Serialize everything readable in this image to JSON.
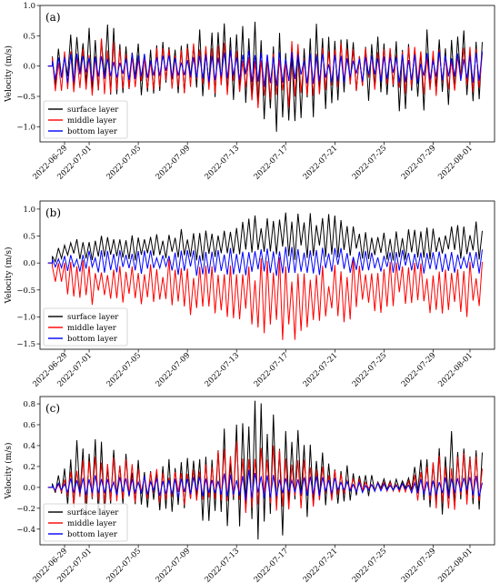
{
  "chart_data": [
    {
      "type": "line",
      "panel_label": "(a)",
      "ylabel": "Velocity (m/s)",
      "ylim": [
        -1.25,
        1.0
      ],
      "yticks": [
        -1.0,
        -0.5,
        0.0,
        0.5,
        1.0
      ],
      "ytick_labels": [
        "−1.0",
        "−0.5",
        "0.0",
        "0.5",
        "1.0"
      ],
      "xlim": [
        "2022-06-27",
        "2022-08-03"
      ],
      "xticks": [
        "2022-06-29",
        "2022-07-01",
        "2022-07-05",
        "2022-07-09",
        "2022-07-13",
        "2022-07-17",
        "2022-07-21",
        "2022-07-25",
        "2022-07-29",
        "2022-08-01"
      ],
      "legend_position": "lower-left",
      "grid": false,
      "series": [
        {
          "name": "surface layer",
          "color": "#000000",
          "start": "2022-06-28",
          "end": "2022-08-02",
          "min": -1.18,
          "max": 0.95,
          "envelope": [
            [
              0.22,
              -0.3
            ],
            [
              0.7,
              -0.45
            ],
            [
              0.75,
              -0.6
            ],
            [
              0.55,
              -0.55
            ],
            [
              0.5,
              -0.5
            ],
            [
              0.55,
              -0.5
            ],
            [
              0.62,
              -0.5
            ],
            [
              0.7,
              -0.6
            ],
            [
              0.7,
              -0.9
            ],
            [
              0.62,
              -1.15
            ],
            [
              0.66,
              -0.95
            ],
            [
              0.58,
              -0.75
            ],
            [
              0.52,
              -0.55
            ],
            [
              0.52,
              -0.6
            ],
            [
              0.58,
              -0.8
            ],
            [
              0.62,
              -0.75
            ],
            [
              0.55,
              -0.5
            ],
            [
              0.6,
              -0.7
            ]
          ]
        },
        {
          "name": "middle layer",
          "color": "#ff0000",
          "start": "2022-06-28",
          "end": "2022-08-02",
          "min": -0.8,
          "max": 0.55,
          "envelope": [
            [
              0.2,
              -0.6
            ],
            [
              0.4,
              -0.6
            ],
            [
              0.45,
              -0.55
            ],
            [
              0.35,
              -0.45
            ],
            [
              0.3,
              -0.4
            ],
            [
              0.35,
              -0.5
            ],
            [
              0.35,
              -0.45
            ],
            [
              0.4,
              -0.55
            ],
            [
              0.45,
              -0.75
            ],
            [
              0.4,
              -0.75
            ],
            [
              0.4,
              -0.7
            ],
            [
              0.35,
              -0.6
            ],
            [
              0.3,
              -0.45
            ],
            [
              0.3,
              -0.45
            ],
            [
              0.35,
              -0.6
            ],
            [
              0.4,
              -0.6
            ],
            [
              0.35,
              -0.45
            ],
            [
              0.45,
              -0.55
            ]
          ]
        },
        {
          "name": "bottom layer",
          "color": "#0000ff",
          "start": "2022-06-28",
          "end": "2022-08-02",
          "min": -0.45,
          "max": 0.3,
          "envelope": [
            [
              0.15,
              -0.3
            ],
            [
              0.25,
              -0.3
            ],
            [
              0.25,
              -0.3
            ],
            [
              0.2,
              -0.25
            ],
            [
              0.2,
              -0.2
            ],
            [
              0.2,
              -0.25
            ],
            [
              0.2,
              -0.25
            ],
            [
              0.25,
              -0.3
            ],
            [
              0.3,
              -0.4
            ],
            [
              0.25,
              -0.35
            ],
            [
              0.25,
              -0.3
            ],
            [
              0.2,
              -0.3
            ],
            [
              0.2,
              -0.25
            ],
            [
              0.2,
              -0.25
            ],
            [
              0.2,
              -0.3
            ],
            [
              0.25,
              -0.3
            ],
            [
              0.2,
              -0.25
            ],
            [
              0.25,
              -0.3
            ]
          ]
        }
      ]
    },
    {
      "type": "line",
      "panel_label": "(b)",
      "ylabel": "Velocity (m/s)",
      "ylim": [
        -1.6,
        1.15
      ],
      "yticks": [
        -1.5,
        -1.0,
        -0.5,
        0.0,
        0.5,
        1.0
      ],
      "ytick_labels": [
        "−1.5",
        "−1.0",
        "−0.5",
        "0.0",
        "0.5",
        "1.0"
      ],
      "xlim": [
        "2022-06-27",
        "2022-08-03"
      ],
      "xticks": [
        "2022-06-29",
        "2022-07-01",
        "2022-07-05",
        "2022-07-09",
        "2022-07-13",
        "2022-07-17",
        "2022-07-21",
        "2022-07-25",
        "2022-07-29",
        "2022-08-01"
      ],
      "legend_position": "lower-left",
      "grid": false,
      "series": [
        {
          "name": "surface layer",
          "color": "#000000",
          "start": "2022-06-28",
          "end": "2022-08-02",
          "min": -0.1,
          "max": 1.08,
          "envelope": [
            [
              0.2,
              0.0
            ],
            [
              0.5,
              0.05
            ],
            [
              0.55,
              0.05
            ],
            [
              0.55,
              0.05
            ],
            [
              0.55,
              0.05
            ],
            [
              0.6,
              0.05
            ],
            [
              0.65,
              0.05
            ],
            [
              0.75,
              0.05
            ],
            [
              0.85,
              0.05
            ],
            [
              0.95,
              0.05
            ],
            [
              1.0,
              0.05
            ],
            [
              0.9,
              0.05
            ],
            [
              0.7,
              0.05
            ],
            [
              0.55,
              0.05
            ],
            [
              0.6,
              0.05
            ],
            [
              0.75,
              0.05
            ],
            [
              0.7,
              0.05
            ],
            [
              0.8,
              0.05
            ]
          ]
        },
        {
          "name": "middle layer",
          "color": "#ff0000",
          "start": "2022-06-28",
          "end": "2022-08-02",
          "min": -1.5,
          "max": 0.1,
          "envelope": [
            [
              0.05,
              -0.3
            ],
            [
              0.05,
              -0.75
            ],
            [
              0.05,
              -0.8
            ],
            [
              0.05,
              -0.85
            ],
            [
              0.05,
              -0.85
            ],
            [
              0.05,
              -0.95
            ],
            [
              0.05,
              -1.0
            ],
            [
              0.05,
              -1.15
            ],
            [
              0.05,
              -1.3
            ],
            [
              0.05,
              -1.4
            ],
            [
              0.05,
              -1.45
            ],
            [
              0.05,
              -1.3
            ],
            [
              0.05,
              -1.1
            ],
            [
              0.05,
              -0.9
            ],
            [
              0.05,
              -0.85
            ],
            [
              0.05,
              -0.9
            ],
            [
              0.05,
              -0.95
            ],
            [
              0.05,
              -1.05
            ]
          ]
        },
        {
          "name": "bottom layer",
          "color": "#0000ff",
          "start": "2022-06-28",
          "end": "2022-08-02",
          "min": -0.3,
          "max": 0.35,
          "envelope": [
            [
              0.15,
              -0.15
            ],
            [
              0.2,
              -0.2
            ],
            [
              0.25,
              -0.2
            ],
            [
              0.25,
              -0.2
            ],
            [
              0.25,
              -0.2
            ],
            [
              0.25,
              -0.2
            ],
            [
              0.25,
              -0.25
            ],
            [
              0.3,
              -0.25
            ],
            [
              0.3,
              -0.25
            ],
            [
              0.3,
              -0.25
            ],
            [
              0.3,
              -0.25
            ],
            [
              0.3,
              -0.2
            ],
            [
              0.25,
              -0.2
            ],
            [
              0.25,
              -0.2
            ],
            [
              0.25,
              -0.2
            ],
            [
              0.25,
              -0.2
            ],
            [
              0.25,
              -0.2
            ],
            [
              0.3,
              -0.2
            ]
          ]
        }
      ]
    },
    {
      "type": "line",
      "panel_label": "(c)",
      "ylabel": "Velocity (m/s)",
      "ylim": [
        -0.55,
        0.87
      ],
      "yticks": [
        -0.4,
        -0.2,
        0.0,
        0.2,
        0.4,
        0.6,
        0.8
      ],
      "ytick_labels": [
        "−0.4",
        "−0.2",
        "0.0",
        "0.2",
        "0.4",
        "0.6",
        "0.8"
      ],
      "xlim": [
        "2022-06-27",
        "2022-08-03"
      ],
      "xticks": [
        "2022-06-29",
        "2022-07-01",
        "2022-07-05",
        "2022-07-09",
        "2022-07-13",
        "2022-07-17",
        "2022-07-21",
        "2022-07-25",
        "2022-07-29",
        "2022-08-01"
      ],
      "legend_position": "lower-left",
      "grid": false,
      "series": [
        {
          "name": "surface layer",
          "color": "#000000",
          "start": "2022-06-28",
          "end": "2022-08-02",
          "min": -0.5,
          "max": 0.83,
          "envelope": [
            [
              0.05,
              -0.05
            ],
            [
              0.5,
              -0.3
            ],
            [
              0.4,
              -0.25
            ],
            [
              0.3,
              -0.2
            ],
            [
              0.25,
              -0.2
            ],
            [
              0.3,
              -0.25
            ],
            [
              0.4,
              -0.3
            ],
            [
              0.6,
              -0.45
            ],
            [
              0.8,
              -0.5
            ],
            [
              0.7,
              -0.45
            ],
            [
              0.55,
              -0.3
            ],
            [
              0.35,
              -0.2
            ],
            [
              0.15,
              -0.1
            ],
            [
              0.1,
              -0.05
            ],
            [
              0.1,
              -0.05
            ],
            [
              0.45,
              -0.25
            ],
            [
              0.55,
              -0.3
            ],
            [
              0.45,
              -0.25
            ]
          ]
        },
        {
          "name": "middle layer",
          "color": "#ff0000",
          "start": "2022-06-28",
          "end": "2022-08-02",
          "min": -0.3,
          "max": 0.5,
          "envelope": [
            [
              0.02,
              -0.02
            ],
            [
              0.25,
              -0.2
            ],
            [
              0.3,
              -0.2
            ],
            [
              0.25,
              -0.15
            ],
            [
              0.2,
              -0.15
            ],
            [
              0.2,
              -0.15
            ],
            [
              0.3,
              -0.2
            ],
            [
              0.4,
              -0.25
            ],
            [
              0.45,
              -0.25
            ],
            [
              0.4,
              -0.25
            ],
            [
              0.3,
              -0.2
            ],
            [
              0.2,
              -0.15
            ],
            [
              0.08,
              -0.05
            ],
            [
              0.05,
              -0.03
            ],
            [
              0.05,
              -0.05
            ],
            [
              0.3,
              -0.2
            ],
            [
              0.35,
              -0.2
            ],
            [
              0.3,
              -0.2
            ]
          ]
        },
        {
          "name": "bottom layer",
          "color": "#0000ff",
          "start": "2022-06-28",
          "end": "2022-08-02",
          "min": -0.2,
          "max": 0.2,
          "envelope": [
            [
              0.02,
              -0.02
            ],
            [
              0.12,
              -0.1
            ],
            [
              0.12,
              -0.1
            ],
            [
              0.1,
              -0.1
            ],
            [
              0.1,
              -0.08
            ],
            [
              0.1,
              -0.1
            ],
            [
              0.12,
              -0.1
            ],
            [
              0.15,
              -0.12
            ],
            [
              0.18,
              -0.15
            ],
            [
              0.15,
              -0.12
            ],
            [
              0.12,
              -0.1
            ],
            [
              0.1,
              -0.08
            ],
            [
              0.05,
              -0.05
            ],
            [
              0.04,
              -0.04
            ],
            [
              0.04,
              -0.04
            ],
            [
              0.12,
              -0.1
            ],
            [
              0.12,
              -0.1
            ],
            [
              0.12,
              -0.1
            ]
          ]
        }
      ]
    }
  ]
}
